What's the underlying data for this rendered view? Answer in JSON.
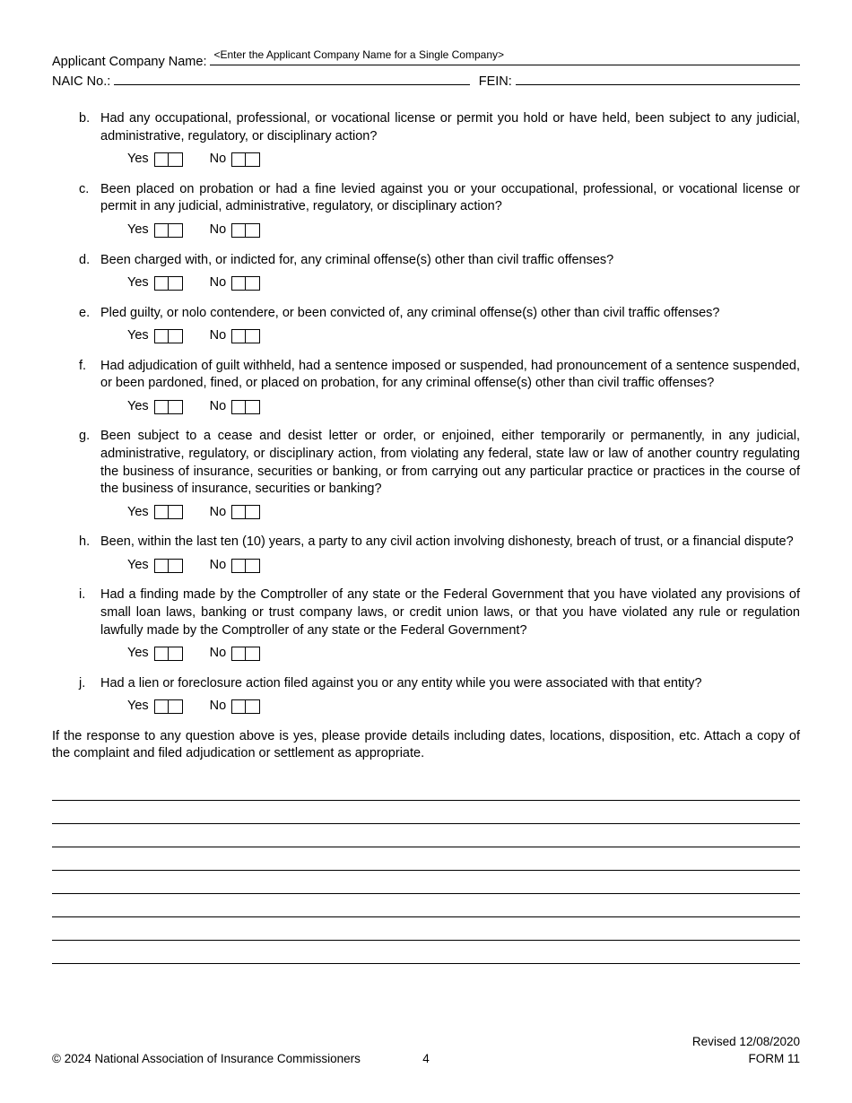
{
  "header": {
    "company_label": "Applicant Company Name:",
    "company_placeholder": "<Enter the Applicant Company Name for a Single Company>",
    "naic_label": "NAIC No.:",
    "fein_label": "FEIN:"
  },
  "questions": [
    {
      "letter": "b.",
      "text": "Had any occupational, professional, or vocational license or permit you hold or have held, been subject to any judicial, administrative, regulatory, or disciplinary action?"
    },
    {
      "letter": "c.",
      "text": "Been placed on probation or had a fine levied against you or your occupational, professional, or vocational license or permit in any judicial, administrative, regulatory, or disciplinary action?"
    },
    {
      "letter": "d.",
      "text": "Been charged with, or indicted for, any criminal offense(s) other than civil traffic offenses?"
    },
    {
      "letter": "e.",
      "text": "Pled guilty, or nolo contendere, or been convicted of, any criminal offense(s) other than civil traffic offenses?"
    },
    {
      "letter": "f.",
      "text": "Had adjudication of guilt withheld, had a sentence imposed or suspended, had pronouncement of a sentence suspended, or been pardoned, fined, or placed on probation, for any criminal offense(s) other than civil traffic offenses?"
    },
    {
      "letter": "g.",
      "text": "Been subject to a cease and desist letter or order, or enjoined, either temporarily or permanently, in any judicial, administrative, regulatory, or disciplinary action, from violating any federal, state law or law of another country regulating the business of insurance, securities or banking, or from carrying out any particular practice or practices in the course of the business of insurance, securities or banking?"
    },
    {
      "letter": "h.",
      "text": "Been, within the last ten (10) years, a party to any civil action involving dishonesty, breach of trust, or a financial dispute?"
    },
    {
      "letter": "i.",
      "text": "Had a finding made by the Comptroller of any state or the Federal Government that you have violated any provisions of small loan laws, banking or trust company laws, or credit union laws, or that you have violated any rule or regulation lawfully made by the Comptroller of any state or the Federal Government?"
    },
    {
      "letter": "j.",
      "text": "Had a lien or foreclosure action filed against you or any entity while you were associated with that entity?"
    }
  ],
  "yes_label": "Yes",
  "no_label": "No",
  "instructions": "If the response to any question above is yes, please provide details including dates, locations, disposition, etc. Attach a copy of the complaint and filed adjudication or settlement as appropriate.",
  "blank_line_count": 8,
  "footer": {
    "revised": "Revised 12/08/2020",
    "copyright": "© 2024 National Association of Insurance Commissioners",
    "page_number": "4",
    "form": "FORM 11"
  }
}
